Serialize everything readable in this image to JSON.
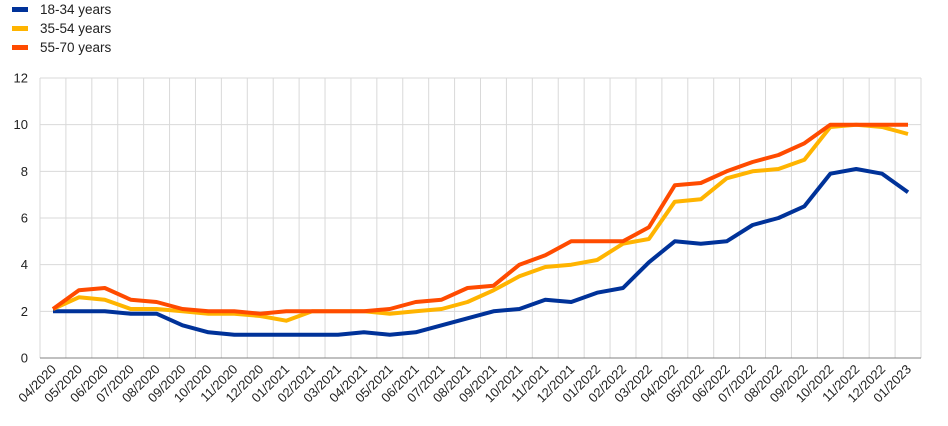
{
  "chart_data": {
    "type": "line",
    "categories": [
      "04/2020",
      "05/2020",
      "06/2020",
      "07/2020",
      "08/2020",
      "09/2020",
      "10/2020",
      "11/2020",
      "12/2020",
      "01/2021",
      "02/2021",
      "03/2021",
      "04/2021",
      "05/2021",
      "06/2021",
      "07/2021",
      "08/2021",
      "09/2021",
      "10/2021",
      "11/2021",
      "12/2021",
      "01/2022",
      "02/2022",
      "03/2022",
      "04/2022",
      "05/2022",
      "06/2022",
      "07/2022",
      "08/2022",
      "09/2022",
      "10/2022",
      "11/2022",
      "12/2022",
      "01/2023"
    ],
    "series": [
      {
        "name": "18-34 years",
        "color": "#003299",
        "values": [
          2.0,
          2.0,
          2.0,
          1.9,
          1.9,
          1.4,
          1.1,
          1.0,
          1.0,
          1.0,
          1.0,
          1.0,
          1.1,
          1.0,
          1.1,
          1.4,
          1.7,
          2.0,
          2.1,
          2.5,
          2.4,
          2.8,
          3.0,
          4.1,
          5.0,
          4.9,
          5.0,
          5.7,
          6.0,
          6.5,
          7.9,
          8.1,
          7.9,
          7.1
        ]
      },
      {
        "name": "35-54 years",
        "color": "#FFB400",
        "values": [
          2.1,
          2.6,
          2.5,
          2.1,
          2.1,
          2.0,
          1.9,
          1.9,
          1.8,
          1.6,
          2.0,
          2.0,
          2.0,
          1.9,
          2.0,
          2.1,
          2.4,
          2.9,
          3.5,
          3.9,
          4.0,
          4.2,
          4.9,
          5.1,
          6.7,
          6.8,
          7.7,
          8.0,
          8.1,
          8.5,
          9.9,
          10.0,
          9.9,
          9.6
        ]
      },
      {
        "name": "55-70 years",
        "color": "#FF4B00",
        "values": [
          2.1,
          2.9,
          3.0,
          2.5,
          2.4,
          2.1,
          2.0,
          2.0,
          1.9,
          2.0,
          2.0,
          2.0,
          2.0,
          2.1,
          2.4,
          2.5,
          3.0,
          3.1,
          4.0,
          4.4,
          5.0,
          5.0,
          5.0,
          5.6,
          7.4,
          7.5,
          8.0,
          8.4,
          8.7,
          9.2,
          10.0,
          10.0,
          10.0,
          10.0
        ]
      }
    ],
    "yticks": [
      0,
      2,
      4,
      6,
      8,
      10,
      12
    ],
    "ylim": [
      0,
      12
    ],
    "grid": true,
    "legend_position": "top-left"
  }
}
